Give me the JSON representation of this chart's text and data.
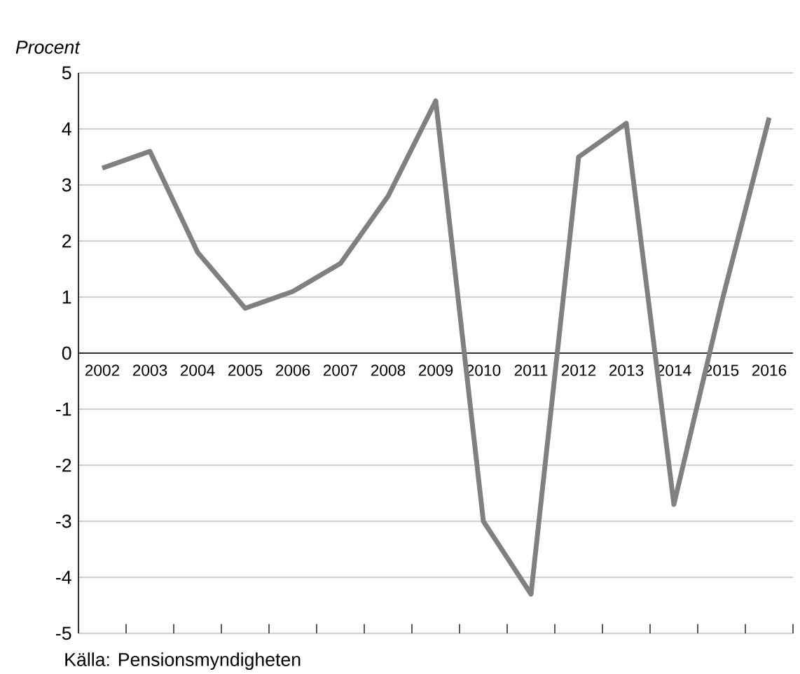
{
  "chart_data": {
    "type": "line",
    "ylabel": "Procent",
    "categories": [
      "2002",
      "2003",
      "2004",
      "2005",
      "2006",
      "2007",
      "2008",
      "2009",
      "2010",
      "2011",
      "2012",
      "2013",
      "2014",
      "2015",
      "2016"
    ],
    "series": [
      {
        "color": "#808080",
        "values": [
          3.3,
          3.6,
          1.8,
          0.8,
          1.1,
          1.6,
          2.8,
          4.5,
          -3.0,
          -4.3,
          3.5,
          4.1,
          -2.7,
          0.9,
          4.2
        ]
      }
    ],
    "ylim": [
      -5,
      5
    ],
    "yticks": [
      -5,
      -4,
      -3,
      -2,
      -1,
      0,
      1,
      2,
      3,
      4,
      5
    ],
    "grid": "y",
    "marker": "none",
    "line_style": "solid",
    "annotations": [
      "Källa: Pensionsmyndigheten"
    ]
  }
}
